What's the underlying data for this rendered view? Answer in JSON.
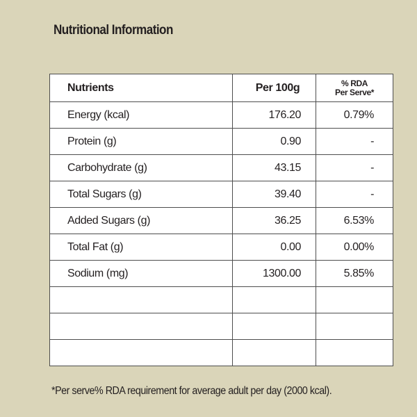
{
  "title": "Nutritional Information",
  "table": {
    "headers": {
      "nutrients": "Nutrients",
      "per100g": "Per 100g",
      "rda_line1": "% RDA",
      "rda_line2": "Per Serve*"
    },
    "rows": [
      {
        "name": "Energy (kcal)",
        "per100g": "176.20",
        "rda": "0.79%"
      },
      {
        "name": "Protein (g)",
        "per100g": "0.90",
        "rda": "-"
      },
      {
        "name": "Carbohydrate (g)",
        "per100g": "43.15",
        "rda": "-"
      },
      {
        "name": "Total Sugars (g)",
        "per100g": "39.40",
        "rda": "-"
      },
      {
        "name": "Added Sugars (g)",
        "per100g": "36.25",
        "rda": "6.53%"
      },
      {
        "name": "Total Fat (g)",
        "per100g": "0.00",
        "rda": "0.00%"
      },
      {
        "name": "Sodium (mg)",
        "per100g": "1300.00",
        "rda": "5.85%"
      }
    ]
  },
  "footnote": "*Per serve% RDA requirement for average adult per day (2000 kcal).",
  "colors": {
    "background": "#dad5b9",
    "table_background": "#ffffff",
    "border": "#4d4d4d",
    "text": "#231f20"
  }
}
